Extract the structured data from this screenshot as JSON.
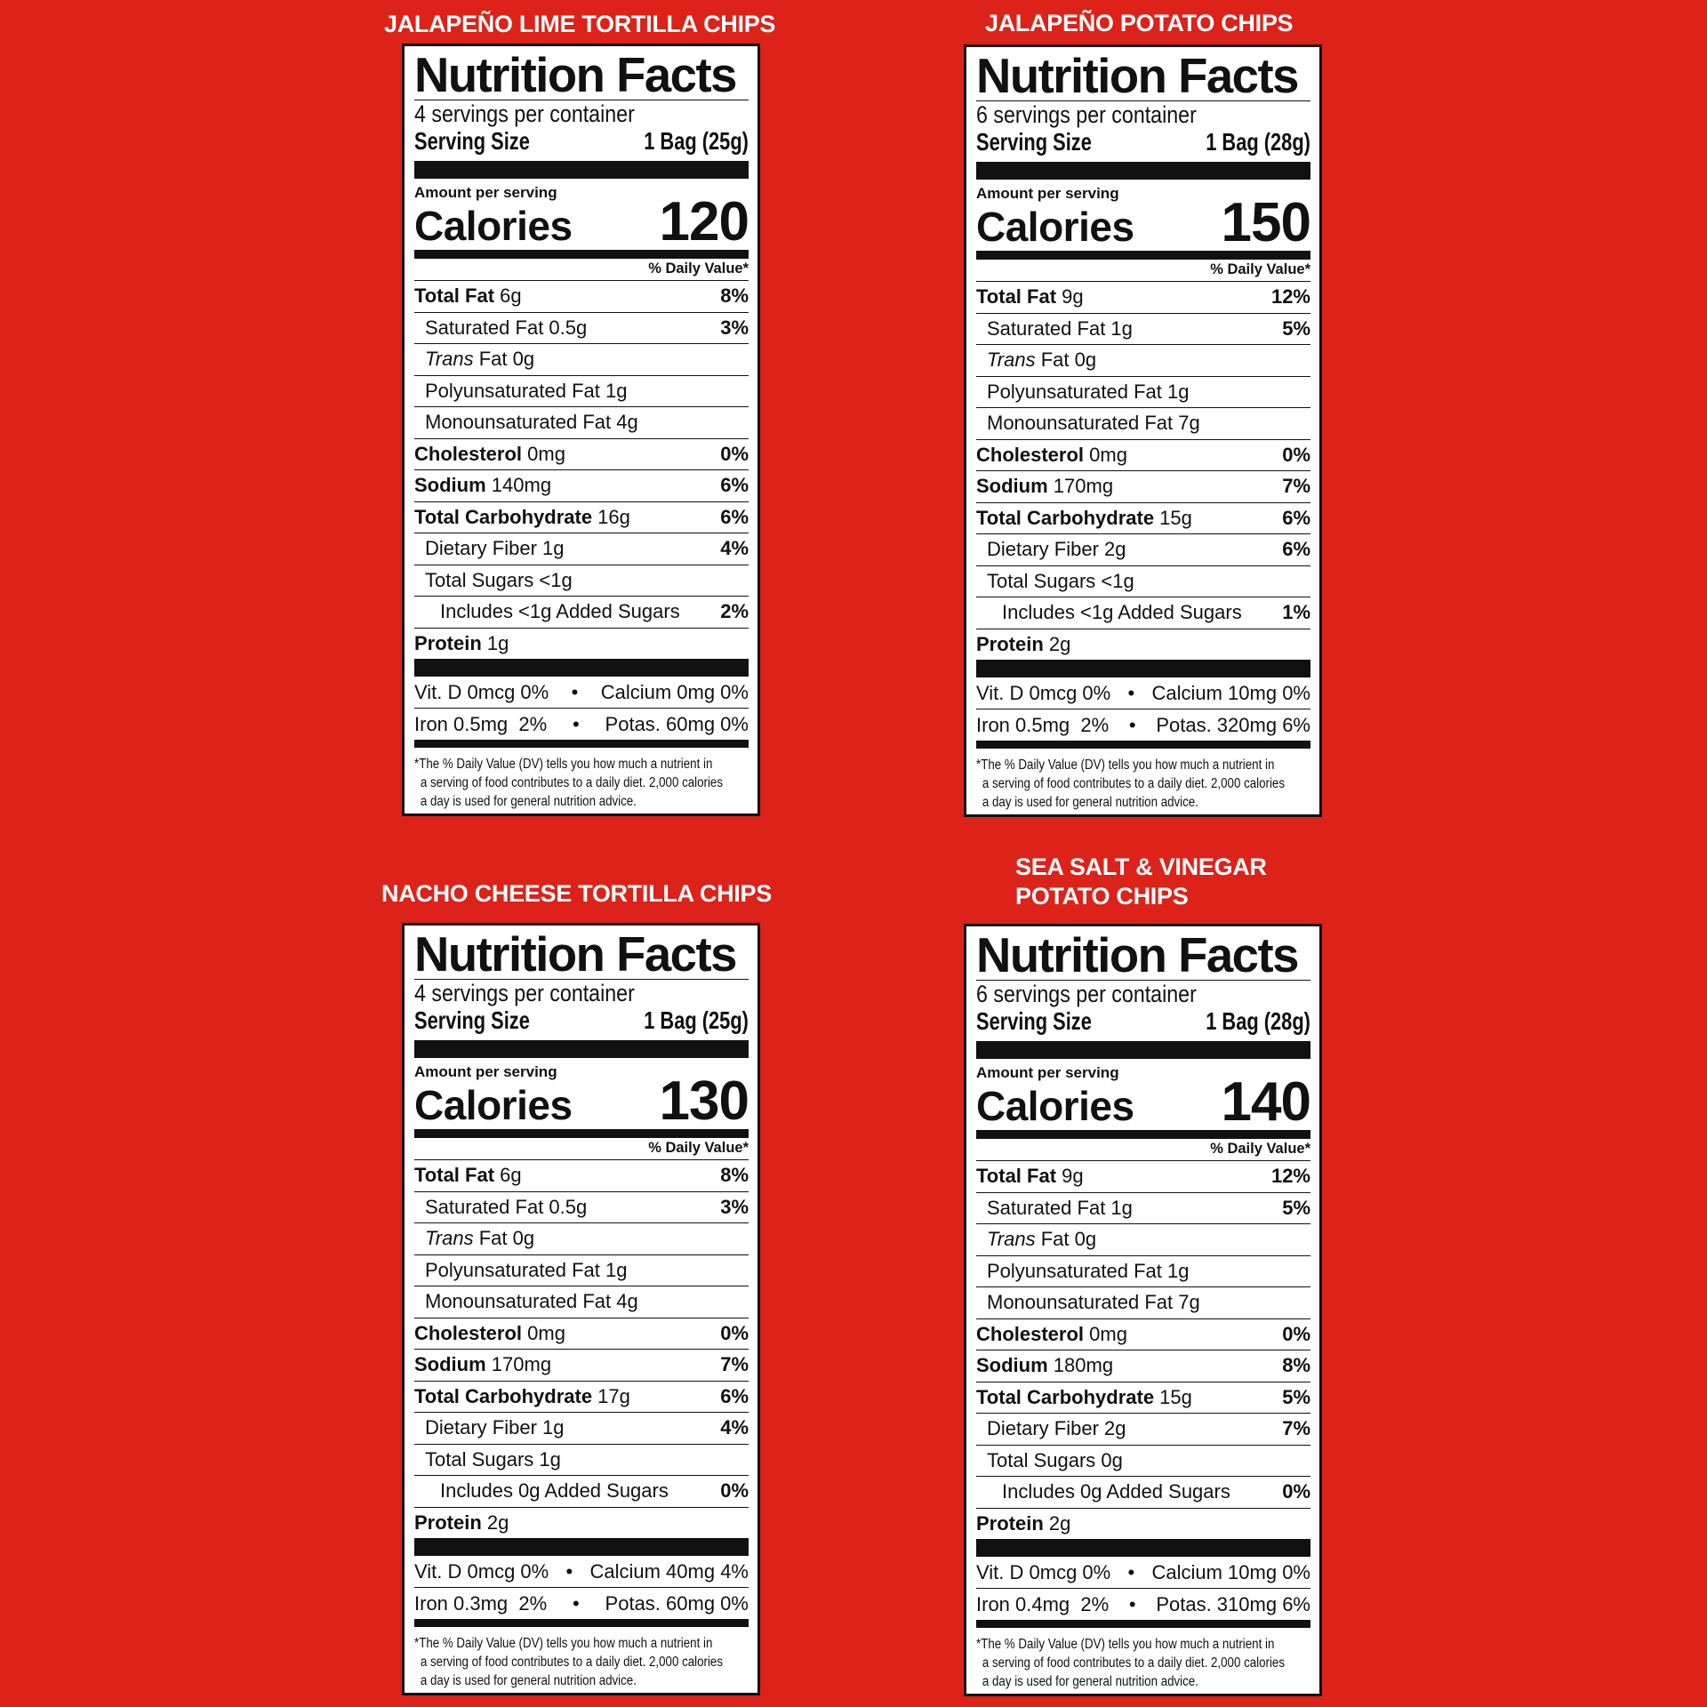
{
  "common": {
    "heading": "Nutrition Facts",
    "serving_size_label": "Serving Size",
    "amount_per_serving": "Amount per serving",
    "calories_label": "Calories",
    "daily_value_header": "% Daily Value*",
    "footnote": [
      "*The % Daily Value (DV) tells you how much a nutrient in",
      "a serving of food contributes to a daily diet. 2,000 calories",
      "a day is used for general nutrition advice."
    ]
  },
  "colors": {
    "background": "#dc2219",
    "label": "#ffffff",
    "ink": "#111111"
  },
  "products": [
    {
      "title": [
        "JALAPEÑO LIME TORTILLA CHIPS"
      ],
      "servings": "4 servings per container",
      "serving_size": "1 Bag (25g)",
      "calories": "120",
      "rows": [
        {
          "bold": "Total Fat",
          "name": " 6g",
          "dv": "8%",
          "level": 0
        },
        {
          "name": "Saturated Fat 0.5g",
          "dv": "3%",
          "level": 1
        },
        {
          "italic": "Trans",
          "name": " Fat 0g",
          "dv": "",
          "level": 1
        },
        {
          "name": "Polyunsaturated Fat 1g",
          "dv": "",
          "level": 1
        },
        {
          "name": "Monounsaturated Fat 4g",
          "dv": "",
          "level": 1
        },
        {
          "bold": "Cholesterol",
          "name": " 0mg",
          "dv": "0%",
          "level": 0
        },
        {
          "bold": "Sodium",
          "name": " 140mg",
          "dv": "6%",
          "level": 0
        },
        {
          "bold": "Total Carbohydrate",
          "name": " 16g",
          "dv": "6%",
          "level": 0
        },
        {
          "name": "Dietary Fiber 1g",
          "dv": "4%",
          "level": 1
        },
        {
          "name": "Total Sugars <1g",
          "dv": "",
          "level": 1
        },
        {
          "name": "Includes <1g Added Sugars",
          "dv": "2%",
          "level": 2
        },
        {
          "bold": "Protein",
          "name": " 1g",
          "dv": "",
          "level": 0
        }
      ],
      "vitamins": [
        [
          "Vit. D 0mcg 0%",
          "•",
          "Calcium 0mg 0%"
        ],
        [
          "Iron 0.5mg  2%",
          "•",
          "Potas. 60mg 0%"
        ]
      ]
    },
    {
      "title": [
        "JALAPEÑO POTATO CHIPS"
      ],
      "servings": "6 servings per container",
      "serving_size": "1 Bag (28g)",
      "calories": "150",
      "rows": [
        {
          "bold": "Total Fat",
          "name": " 9g",
          "dv": "12%",
          "level": 0
        },
        {
          "name": "Saturated Fat 1g",
          "dv": "5%",
          "level": 1
        },
        {
          "italic": "Trans",
          "name": " Fat 0g",
          "dv": "",
          "level": 1
        },
        {
          "name": "Polyunsaturated Fat 1g",
          "dv": "",
          "level": 1
        },
        {
          "name": "Monounsaturated Fat 7g",
          "dv": "",
          "level": 1
        },
        {
          "bold": "Cholesterol",
          "name": " 0mg",
          "dv": "0%",
          "level": 0
        },
        {
          "bold": "Sodium",
          "name": " 170mg",
          "dv": "7%",
          "level": 0
        },
        {
          "bold": "Total Carbohydrate",
          "name": " 15g",
          "dv": "6%",
          "level": 0
        },
        {
          "name": "Dietary Fiber 2g",
          "dv": "6%",
          "level": 1
        },
        {
          "name": "Total Sugars <1g",
          "dv": "",
          "level": 1
        },
        {
          "name": "Includes <1g Added Sugars",
          "dv": "1%",
          "level": 2
        },
        {
          "bold": "Protein",
          "name": " 2g",
          "dv": "",
          "level": 0
        }
      ],
      "vitamins": [
        [
          "Vit. D 0mcg 0%",
          "•",
          "Calcium 10mg 0%"
        ],
        [
          "Iron 0.5mg  2%",
          "•",
          "Potas. 320mg 6%"
        ]
      ]
    },
    {
      "title": [
        "NACHO CHEESE TORTILLA CHIPS"
      ],
      "servings": "4 servings per container",
      "serving_size": "1 Bag (25g)",
      "calories": "130",
      "rows": [
        {
          "bold": "Total Fat",
          "name": " 6g",
          "dv": "8%",
          "level": 0
        },
        {
          "name": "Saturated Fat 0.5g",
          "dv": "3%",
          "level": 1
        },
        {
          "italic": "Trans",
          "name": " Fat 0g",
          "dv": "",
          "level": 1
        },
        {
          "name": "Polyunsaturated Fat 1g",
          "dv": "",
          "level": 1
        },
        {
          "name": "Monounsaturated Fat 4g",
          "dv": "",
          "level": 1
        },
        {
          "bold": "Cholesterol",
          "name": " 0mg",
          "dv": "0%",
          "level": 0
        },
        {
          "bold": "Sodium",
          "name": " 170mg",
          "dv": "7%",
          "level": 0
        },
        {
          "bold": "Total Carbohydrate",
          "name": " 17g",
          "dv": "6%",
          "level": 0
        },
        {
          "name": "Dietary Fiber 1g",
          "dv": "4%",
          "level": 1
        },
        {
          "name": "Total Sugars 1g",
          "dv": "",
          "level": 1
        },
        {
          "name": "Includes 0g Added Sugars",
          "dv": "0%",
          "level": 2
        },
        {
          "bold": "Protein",
          "name": " 2g",
          "dv": "",
          "level": 0
        }
      ],
      "vitamins": [
        [
          "Vit. D 0mcg 0%",
          "•",
          "Calcium 40mg 4%"
        ],
        [
          "Iron 0.3mg  2%",
          "•",
          "Potas. 60mg 0%"
        ]
      ]
    },
    {
      "title": [
        "SEA SALT & VINEGAR",
        "POTATO CHIPS"
      ],
      "servings": "6 servings per container",
      "serving_size": "1 Bag (28g)",
      "calories": "140",
      "rows": [
        {
          "bold": "Total Fat",
          "name": " 9g",
          "dv": "12%",
          "level": 0
        },
        {
          "name": "Saturated Fat 1g",
          "dv": "5%",
          "level": 1
        },
        {
          "italic": "Trans",
          "name": " Fat 0g",
          "dv": "",
          "level": 1
        },
        {
          "name": "Polyunsaturated Fat 1g",
          "dv": "",
          "level": 1
        },
        {
          "name": "Monounsaturated Fat 7g",
          "dv": "",
          "level": 1
        },
        {
          "bold": "Cholesterol",
          "name": " 0mg",
          "dv": "0%",
          "level": 0
        },
        {
          "bold": "Sodium",
          "name": " 180mg",
          "dv": "8%",
          "level": 0
        },
        {
          "bold": "Total Carbohydrate",
          "name": " 15g",
          "dv": "5%",
          "level": 0
        },
        {
          "name": "Dietary Fiber 2g",
          "dv": "7%",
          "level": 1
        },
        {
          "name": "Total Sugars 0g",
          "dv": "",
          "level": 1
        },
        {
          "name": "Includes 0g Added Sugars",
          "dv": "0%",
          "level": 2
        },
        {
          "bold": "Protein",
          "name": " 2g",
          "dv": "",
          "level": 0
        }
      ],
      "vitamins": [
        [
          "Vit. D 0mcg 0%",
          "•",
          "Calcium 10mg 0%"
        ],
        [
          "Iron 0.4mg  2%",
          "•",
          "Potas. 310mg 6%"
        ]
      ]
    }
  ]
}
